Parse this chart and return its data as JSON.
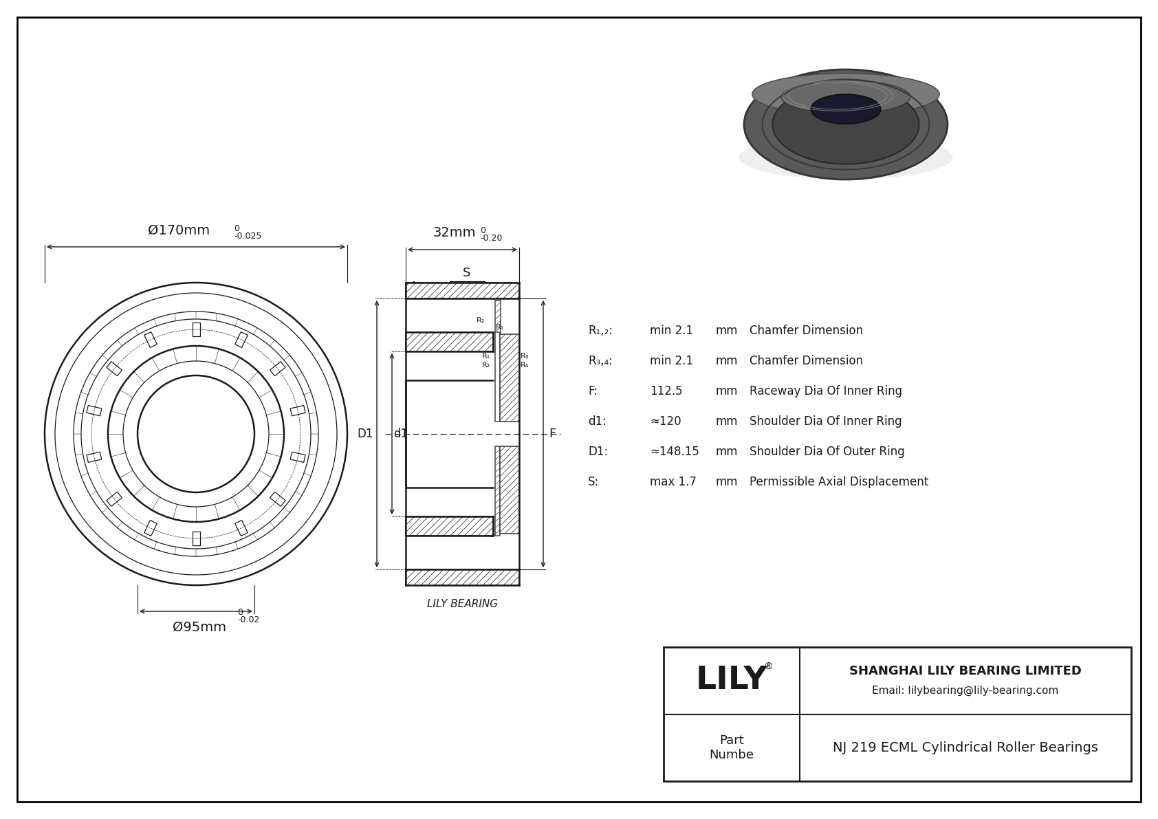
{
  "bg_color": "#ffffff",
  "drawing_color": "#1a1a1a",
  "company": "SHANGHAI LILY BEARING LIMITED",
  "email": "Email: lilybearing@lily-bearing.com",
  "part_label": "Part\nNumbe",
  "part_value": "NJ 219 ECML Cylindrical Roller Bearings",
  "lily_label": "LILY",
  "watermark": "LILY BEARING",
  "dim_od": "Ø170mm",
  "dim_id": "Ø95mm",
  "dim_width": "32mm",
  "params": [
    [
      "R₁,₂:",
      "min 2.1",
      "mm",
      "Chamfer Dimension"
    ],
    [
      "R₃,₄:",
      "min 2.1",
      "mm",
      "Chamfer Dimension"
    ],
    [
      "F:",
      "112.5",
      "mm",
      "Raceway Dia Of Inner Ring"
    ],
    [
      "d1:",
      "≈120",
      "mm",
      "Shoulder Dia Of Inner Ring"
    ],
    [
      "D1:",
      "≈148.15",
      "mm",
      "Shoulder Dia Of Outer Ring"
    ],
    [
      "S:",
      "max 1.7",
      "mm",
      "Permissible Axial Displacement"
    ]
  ]
}
